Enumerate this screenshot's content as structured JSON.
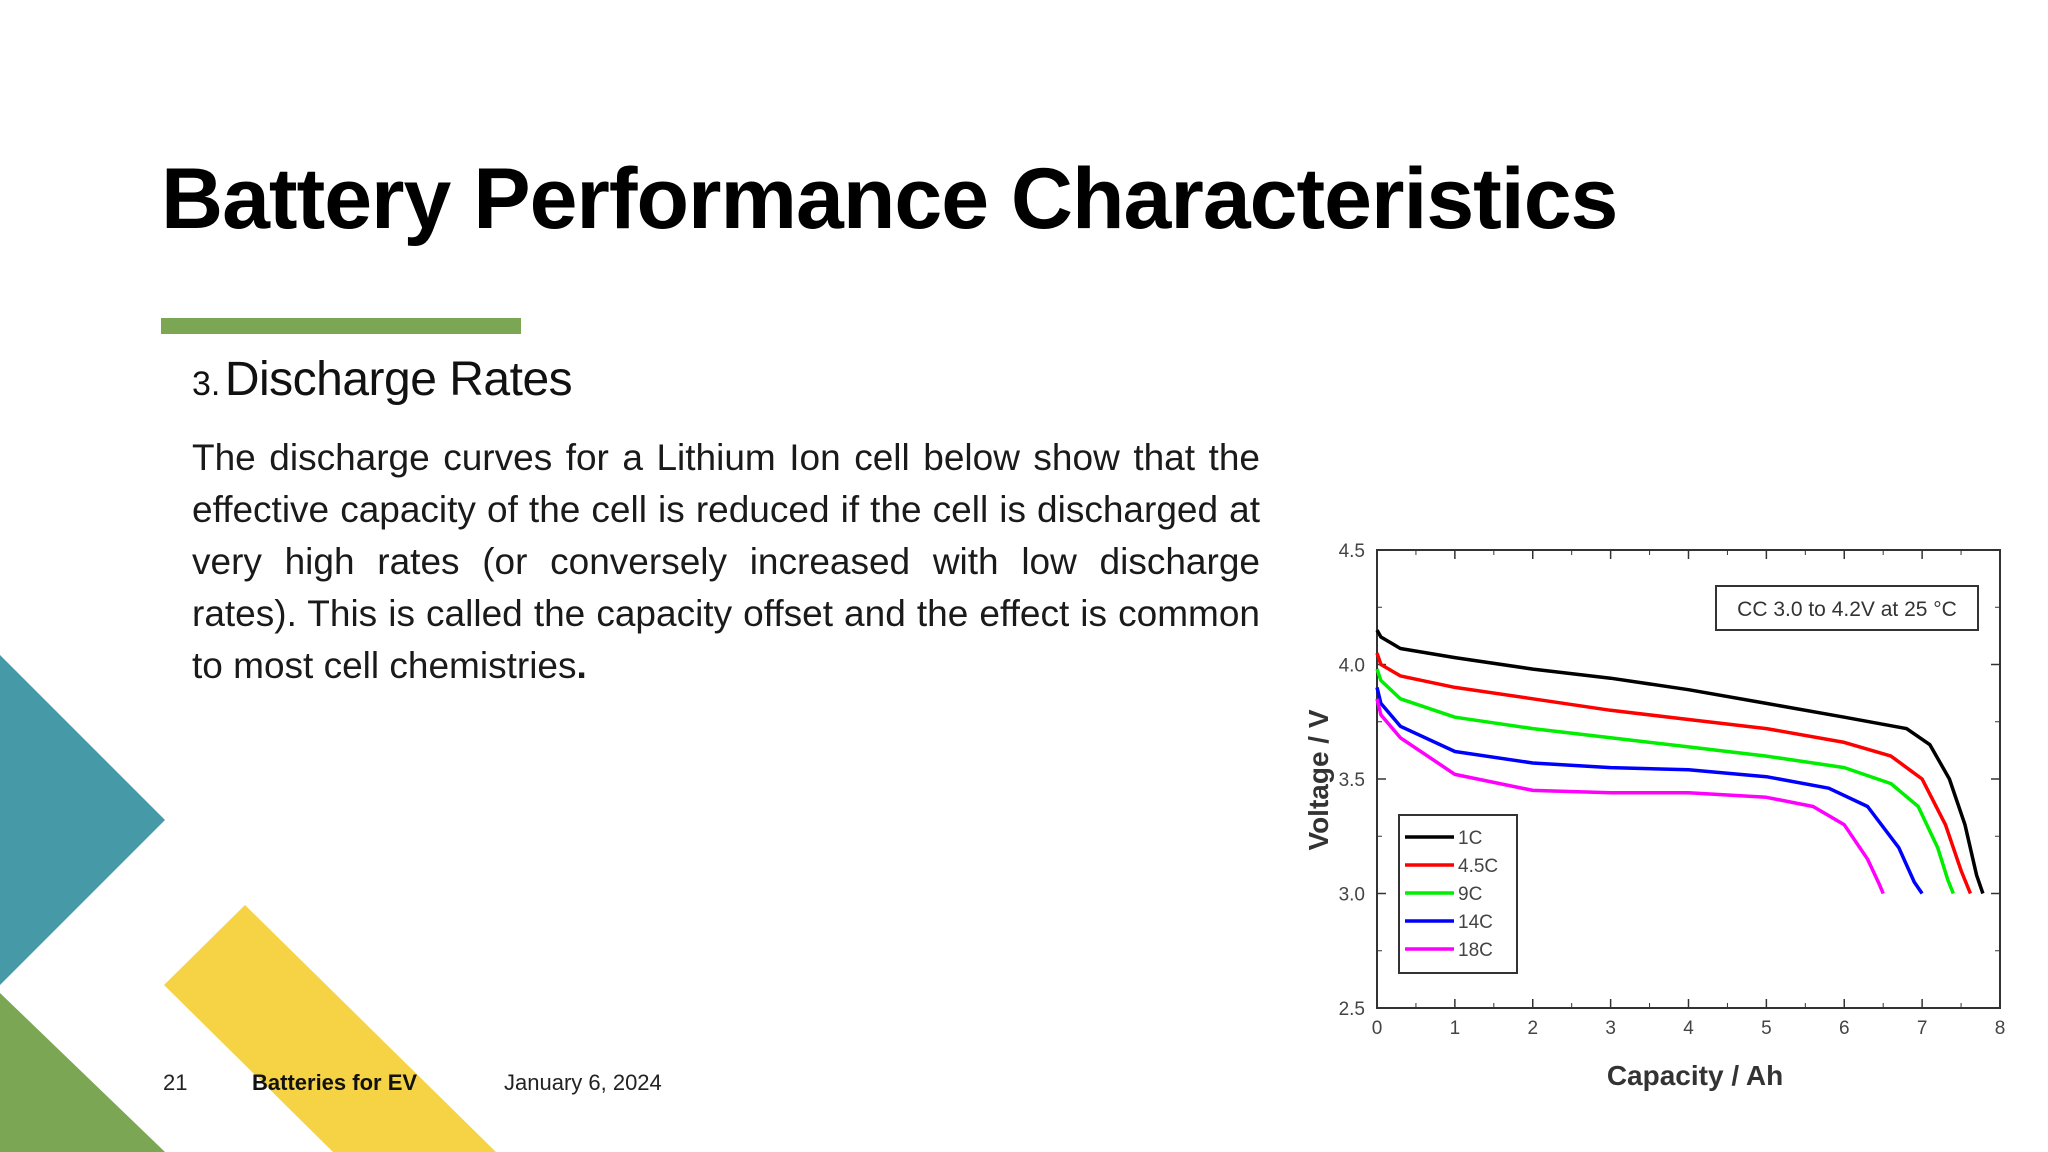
{
  "slide": {
    "title": "Battery Performance Characteristics",
    "section_number": "3.",
    "section_title": "Discharge Rates",
    "body_main": "The discharge curves for a Lithium Ion cell below show that the effective capacity of the cell is reduced if the cell is discharged at very high rates (or conversely increased with low discharge rates). This is called the capacity offset and the effect is common to most cell chemistries",
    "body_end": "."
  },
  "footer": {
    "page_number": "21",
    "title": "Batteries for EV",
    "date": "January 6, 2024"
  },
  "colors": {
    "accent_green": "#7BA653",
    "teal": "#4699A6",
    "yellow": "#F6D345",
    "green": "#7BA653"
  },
  "chart_data": {
    "type": "line",
    "xlabel": "Capacity / Ah",
    "ylabel": "Voltage / V",
    "xlim": [
      0,
      8
    ],
    "ylim": [
      2.5,
      4.5
    ],
    "x_ticks": [
      "0",
      "1",
      "2",
      "3",
      "4",
      "5",
      "6",
      "7",
      "8"
    ],
    "y_ticks": [
      "2.5",
      "3.0",
      "3.5",
      "4.0",
      "4.5"
    ],
    "annotation": "CC 3.0 to 4.2V at 25 °C",
    "legend_position": "bottom-left",
    "grid": false,
    "series": [
      {
        "name": "1C",
        "color": "#000000",
        "x": [
          0,
          0.05,
          0.3,
          1,
          2,
          3,
          4,
          5,
          6,
          6.8,
          7.1,
          7.35,
          7.55,
          7.7,
          7.78
        ],
        "y": [
          4.15,
          4.12,
          4.07,
          4.03,
          3.98,
          3.94,
          3.89,
          3.83,
          3.77,
          3.72,
          3.65,
          3.5,
          3.3,
          3.08,
          3.0
        ]
      },
      {
        "name": "4.5C",
        "color": "#ff0000",
        "x": [
          0,
          0.05,
          0.3,
          1,
          2,
          3,
          4,
          5,
          6,
          6.6,
          7.0,
          7.3,
          7.5,
          7.62
        ],
        "y": [
          4.05,
          4.0,
          3.95,
          3.9,
          3.85,
          3.8,
          3.76,
          3.72,
          3.66,
          3.6,
          3.5,
          3.3,
          3.1,
          3.0
        ]
      },
      {
        "name": "9C",
        "color": "#00ee00",
        "x": [
          0,
          0.05,
          0.3,
          1,
          2,
          3,
          4,
          5,
          6,
          6.6,
          6.95,
          7.2,
          7.33,
          7.4
        ],
        "y": [
          3.98,
          3.93,
          3.85,
          3.77,
          3.72,
          3.68,
          3.64,
          3.6,
          3.55,
          3.48,
          3.38,
          3.2,
          3.06,
          3.0
        ]
      },
      {
        "name": "14C",
        "color": "#0000ff",
        "x": [
          0,
          0.05,
          0.3,
          1,
          2,
          3,
          4,
          5,
          5.8,
          6.3,
          6.7,
          6.9,
          7.0
        ],
        "y": [
          3.9,
          3.83,
          3.73,
          3.62,
          3.57,
          3.55,
          3.54,
          3.51,
          3.46,
          3.38,
          3.2,
          3.05,
          3.0
        ]
      },
      {
        "name": "18C",
        "color": "#ff00ff",
        "x": [
          0,
          0.05,
          0.3,
          1,
          2,
          3,
          4,
          5,
          5.6,
          6.0,
          6.3,
          6.45,
          6.5
        ],
        "y": [
          3.85,
          3.78,
          3.68,
          3.52,
          3.45,
          3.44,
          3.44,
          3.42,
          3.38,
          3.3,
          3.15,
          3.04,
          3.0
        ]
      }
    ]
  }
}
